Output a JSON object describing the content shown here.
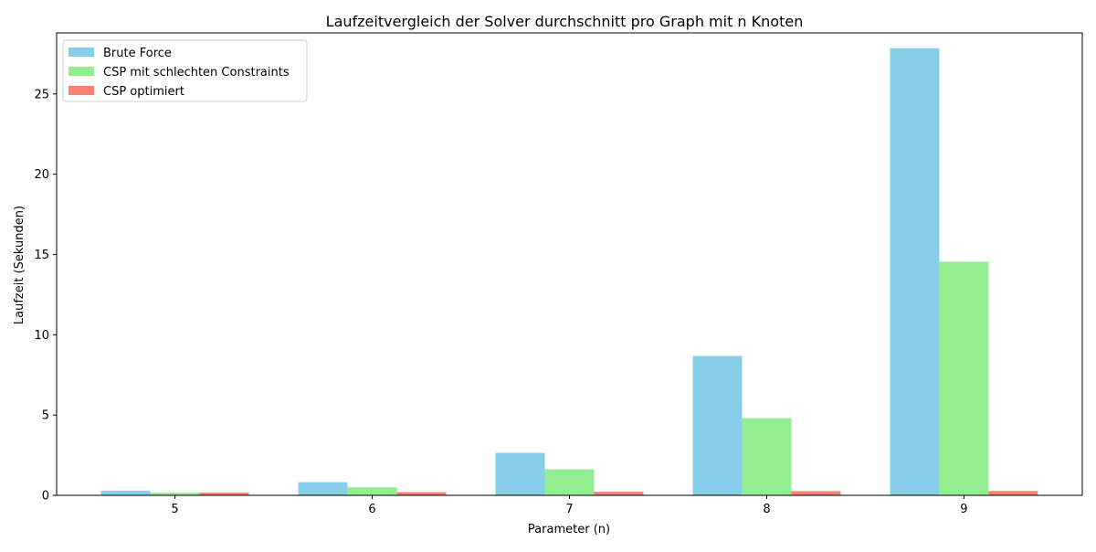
{
  "chart_data": {
    "type": "bar",
    "title": "Laufzeitvergleich der Solver durchschnitt pro Graph mit n Knoten",
    "xlabel": "Parameter (n)",
    "ylabel": "Laufzeit (Sekunden)",
    "categories": [
      "5",
      "6",
      "7",
      "8",
      "9"
    ],
    "series": [
      {
        "name": "Brute Force",
        "color": "#87ceeb",
        "values": [
          0.28,
          0.82,
          2.65,
          8.68,
          27.85
        ]
      },
      {
        "name": "CSP mit schlechten Constraints",
        "color": "#90ee90",
        "values": [
          0.16,
          0.5,
          1.62,
          4.8,
          14.55
        ]
      },
      {
        "name": "CSP optimiert",
        "color": "#fa8072",
        "values": [
          0.17,
          0.2,
          0.22,
          0.26,
          0.27
        ]
      }
    ],
    "ylim": [
      0,
      28.8
    ],
    "yticks": [
      0,
      5,
      10,
      15,
      20,
      25
    ],
    "grid": false,
    "legend_position": "top-left"
  }
}
